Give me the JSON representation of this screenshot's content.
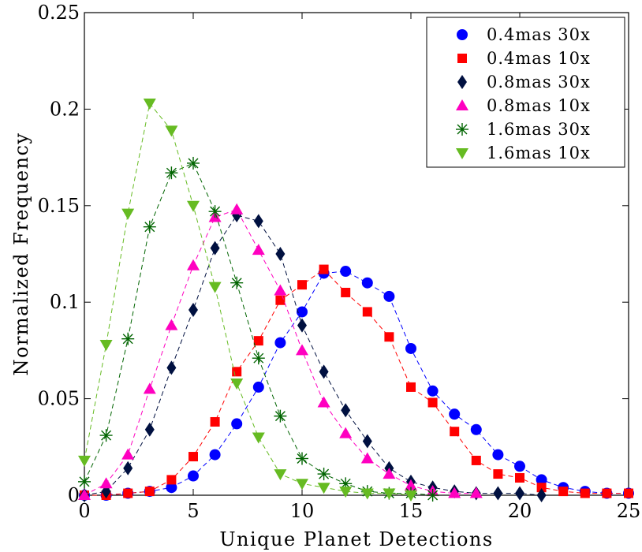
{
  "chart_data": {
    "type": "line",
    "title": "",
    "xlabel": "Unique Planet Detections",
    "ylabel": "Normalized Frequency",
    "xlim": [
      0,
      25
    ],
    "ylim": [
      0,
      0.25
    ],
    "xticks": [
      0,
      5,
      10,
      15,
      20,
      25
    ],
    "xtick_labels": [
      "0",
      "5",
      "10",
      "15",
      "20",
      "25"
    ],
    "yticks": [
      0,
      0.05,
      0.1,
      0.15,
      0.2,
      0.25
    ],
    "ytick_labels": [
      "0",
      "0.05",
      "0.1",
      "0.15",
      "0.2",
      "0.25"
    ],
    "grid": false,
    "legend_position": "top-right",
    "line_style": "dashed",
    "series": [
      {
        "name": "0.4mas 30x",
        "color": "#0000ff",
        "marker": "circle",
        "x": [
          0,
          1,
          2,
          3,
          4,
          5,
          6,
          7,
          8,
          9,
          10,
          11,
          12,
          13,
          14,
          15,
          16,
          17,
          18,
          19,
          20,
          21,
          22,
          23,
          24,
          25
        ],
        "y": [
          0,
          0,
          0.001,
          0.002,
          0.004,
          0.01,
          0.021,
          0.037,
          0.056,
          0.079,
          0.095,
          0.115,
          0.116,
          0.11,
          0.103,
          0.076,
          0.054,
          0.042,
          0.034,
          0.021,
          0.015,
          0.008,
          0.004,
          0.002,
          0.001,
          0.001
        ]
      },
      {
        "name": "0.4mas 10x",
        "color": "#ff0000",
        "marker": "square",
        "x": [
          0,
          1,
          2,
          3,
          4,
          5,
          6,
          7,
          8,
          9,
          10,
          11,
          12,
          13,
          14,
          15,
          16,
          17,
          18,
          19,
          20,
          21,
          22,
          23,
          24,
          25
        ],
        "y": [
          0,
          0,
          0.001,
          0.002,
          0.008,
          0.02,
          0.038,
          0.064,
          0.08,
          0.101,
          0.109,
          0.117,
          0.105,
          0.095,
          0.082,
          0.056,
          0.048,
          0.033,
          0.018,
          0.011,
          0.009,
          0.004,
          0.002,
          0.001,
          0.001,
          0.001
        ]
      },
      {
        "name": "0.8mas 30x",
        "color": "#001040",
        "marker": "diamond",
        "x": [
          0,
          1,
          2,
          3,
          4,
          5,
          6,
          7,
          8,
          9,
          10,
          11,
          12,
          13,
          14,
          15,
          16,
          17,
          18,
          19,
          20,
          21
        ],
        "y": [
          0,
          0.002,
          0.014,
          0.034,
          0.066,
          0.096,
          0.128,
          0.145,
          0.142,
          0.125,
          0.088,
          0.064,
          0.044,
          0.028,
          0.014,
          0.007,
          0.004,
          0.002,
          0.001,
          0.001,
          0.001,
          0
        ]
      },
      {
        "name": "0.8mas 10x",
        "color": "#ff00c0",
        "marker": "triangle-up",
        "x": [
          0,
          1,
          2,
          3,
          4,
          5,
          6,
          7,
          8,
          9,
          10,
          11,
          12,
          13,
          14,
          15,
          16,
          17,
          18
        ],
        "y": [
          0,
          0.006,
          0.021,
          0.055,
          0.088,
          0.119,
          0.144,
          0.148,
          0.127,
          0.106,
          0.075,
          0.048,
          0.032,
          0.019,
          0.011,
          0.005,
          0.002,
          0.001,
          0.001
        ]
      },
      {
        "name": "1.6mas 30x",
        "color": "#006400",
        "marker": "asterisk",
        "x": [
          0,
          1,
          2,
          3,
          4,
          5,
          6,
          7,
          8,
          9,
          10,
          11,
          12,
          13,
          14,
          15,
          16
        ],
        "y": [
          0.007,
          0.031,
          0.081,
          0.139,
          0.167,
          0.172,
          0.147,
          0.11,
          0.071,
          0.041,
          0.019,
          0.011,
          0.006,
          0.002,
          0.001,
          0.001,
          0
        ]
      },
      {
        "name": "1.6mas 10x",
        "color": "#66bb22",
        "marker": "triangle-down",
        "x": [
          0,
          1,
          2,
          3,
          4,
          5,
          6,
          7,
          8,
          9,
          10,
          11,
          12,
          13,
          14,
          15
        ],
        "y": [
          0.018,
          0.078,
          0.146,
          0.203,
          0.189,
          0.15,
          0.108,
          0.058,
          0.03,
          0.011,
          0.006,
          0.004,
          0.002,
          0.001,
          0.001,
          0
        ]
      }
    ]
  }
}
